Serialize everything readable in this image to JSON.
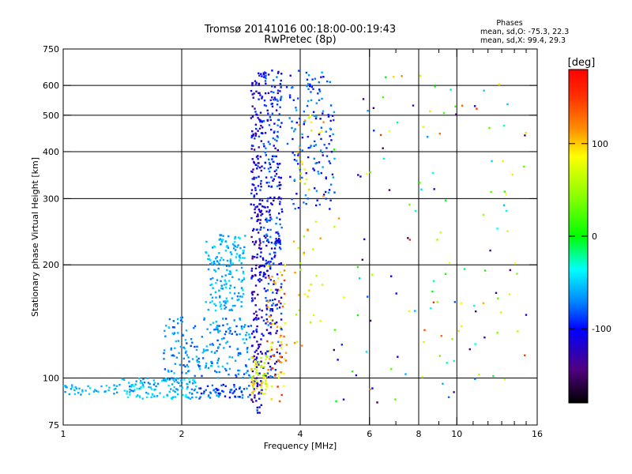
{
  "chart_data": {
    "type": "scatter",
    "title": "Tromsø 20141016 00:18:00-00:19:43",
    "subtitle": "RwPretec (8p)",
    "xlabel": "Frequency [MHz]",
    "ylabel": "Stationary phase Virtual Height [km]",
    "x_scale": "log",
    "y_scale": "log",
    "xlim": [
      1,
      16
    ],
    "ylim": [
      75,
      750
    ],
    "x_ticks": [
      1,
      2,
      4,
      6,
      8,
      10,
      16
    ],
    "x_tick_labels": [
      "1",
      "2",
      "4",
      "6",
      "8",
      "10",
      "16"
    ],
    "x_minor_ticks": [
      7,
      9,
      11,
      12,
      13,
      14,
      15
    ],
    "y_ticks": [
      75,
      100,
      200,
      300,
      400,
      500,
      600,
      750
    ],
    "y_tick_labels": [
      "75",
      "100",
      "200",
      "300",
      "400",
      "500",
      "600",
      "750"
    ],
    "grid": true,
    "grid_x": [
      2,
      4,
      6,
      8,
      10
    ],
    "grid_y": [
      100,
      200,
      300,
      400,
      500,
      600
    ],
    "stats": {
      "heading": "Phases",
      "line_o": "mean, sd,O: -75.3, 22.3",
      "line_x": "mean, sd,X:  99.4, 29.3"
    },
    "colorbar": {
      "label": "[deg]",
      "range": [
        -180,
        180
      ],
      "ticks": [
        100,
        0,
        -100
      ],
      "tick_labels": [
        "100",
        "0",
        "-100"
      ],
      "colormap": "rainbow"
    },
    "series": [
      {
        "x_range": [
          1.0,
          1.4
        ],
        "y_range": [
          90,
          96
        ],
        "phase_range": [
          -70,
          -45
        ],
        "count": 40
      },
      {
        "x_range": [
          1.4,
          2.2
        ],
        "y_range": [
          88,
          100
        ],
        "phase_range": [
          -80,
          -40
        ],
        "count": 130
      },
      {
        "x_range": [
          2.2,
          3.0
        ],
        "y_range": [
          88,
          96
        ],
        "phase_range": [
          -110,
          -60
        ],
        "count": 60
      },
      {
        "x_range": [
          1.8,
          3.0
        ],
        "y_range": [
          100,
          145
        ],
        "phase_range": [
          -90,
          -50
        ],
        "count": 210
      },
      {
        "x_range": [
          2.3,
          2.9
        ],
        "y_range": [
          150,
          240
        ],
        "phase_range": [
          -75,
          -45
        ],
        "count": 170
      },
      {
        "x_range": [
          3.0,
          3.2
        ],
        "y_range": [
          80,
          660
        ],
        "phase_range": [
          -140,
          -85
        ],
        "count": 260
      },
      {
        "x_range": [
          3.2,
          3.6
        ],
        "y_range": [
          100,
          660
        ],
        "phase_range": [
          -125,
          -70
        ],
        "count": 330
      },
      {
        "x_range": [
          3.7,
          4.9
        ],
        "y_range": [
          280,
          660
        ],
        "phase_range": [
          -110,
          -60
        ],
        "count": 150
      },
      {
        "x_range": [
          3.0,
          3.3
        ],
        "y_range": [
          90,
          115
        ],
        "phase_range": [
          55,
          120
        ],
        "count": 60
      },
      {
        "x_range": [
          3.3,
          3.7
        ],
        "y_range": [
          85,
          200
        ],
        "phase_range": [
          80,
          160
        ],
        "count": 70
      },
      {
        "x_range": [
          3.8,
          4.6
        ],
        "y_range": [
          120,
          500
        ],
        "phase_range": [
          60,
          130
        ],
        "count": 50
      },
      {
        "x_range": [
          4.8,
          15.0
        ],
        "y_range": [
          85,
          640
        ],
        "phase_range": [
          -160,
          160
        ],
        "count": 140
      }
    ]
  }
}
